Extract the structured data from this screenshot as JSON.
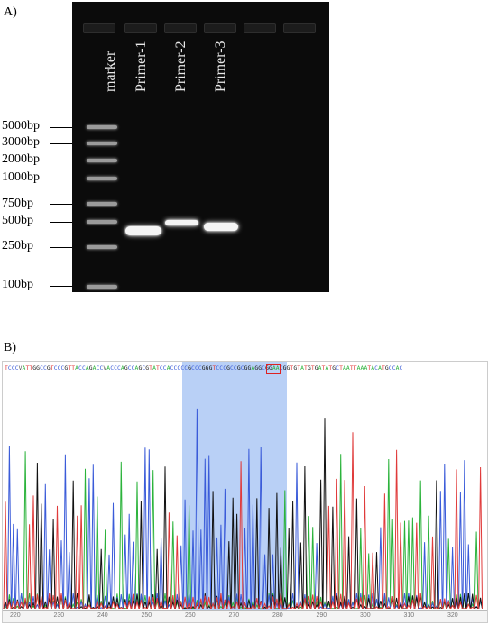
{
  "panel_a": {
    "label": "A)",
    "lanes": [
      "marker",
      "Primer-1",
      "Primer-2",
      "Primer-3"
    ],
    "size_markers": [
      "5000bp",
      "3000bp",
      "2000bp",
      "1000bp",
      "750bp",
      "500bp",
      "250bp",
      "100bp"
    ]
  },
  "panel_b": {
    "label": "B)",
    "sequence": "TCCCVATTGGCCGTCCCGTTACCAGACCVACCCAGCCAGCGTATCCACCCCCGCCCGGGTCCCGCCGCGGAGGCGGAACGGTGTATGTGATATGCTAATTAAATACATGCCAC",
    "axis_numbers": [
      "220",
      "230",
      "240",
      "250",
      "260",
      "270",
      "280",
      "290",
      "300",
      "310",
      "320",
      "330"
    ],
    "base_colors": {
      "A": "#2bb33b",
      "C": "#3a5bd9",
      "G": "#111111",
      "T": "#e03a3a"
    }
  }
}
